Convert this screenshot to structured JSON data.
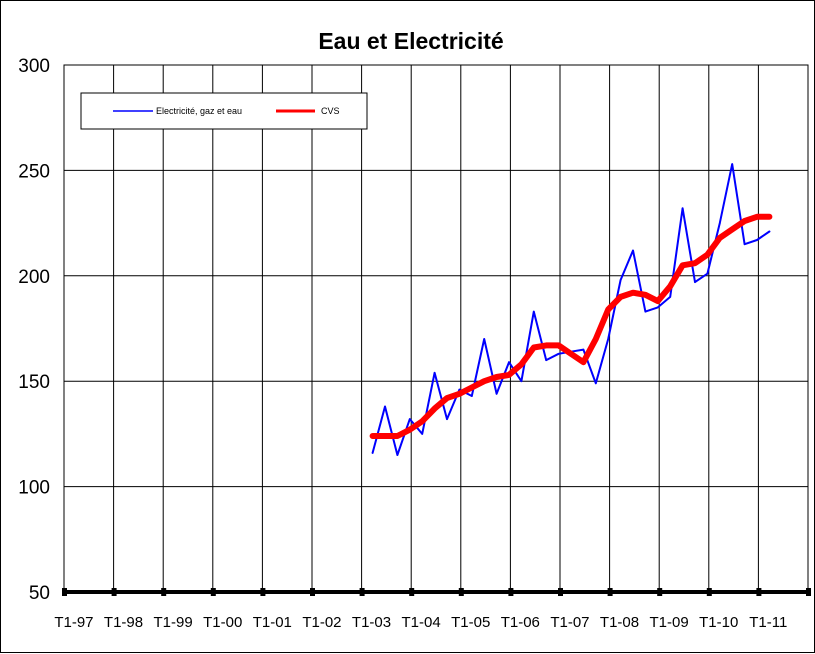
{
  "chart_data": {
    "type": "line",
    "title": "Eau et Electricité",
    "xlabel": "",
    "ylabel": "",
    "ylim": [
      50,
      300
    ],
    "yticks": [
      50,
      100,
      150,
      200,
      250,
      300
    ],
    "x_tick_labels": [
      "T1-97",
      "T1-98",
      "T1-99",
      "T1-00",
      "T1-01",
      "T1-02",
      "T1-03",
      "T1-04",
      "T1-05",
      "T1-06",
      "T1-07",
      "T1-08",
      "T1-09",
      "T1-10",
      "T1-11"
    ],
    "grid": true,
    "legend_position": "top-left",
    "x": [
      "T1-03",
      "T2-03",
      "T3-03",
      "T4-03",
      "T1-04",
      "T2-04",
      "T3-04",
      "T4-04",
      "T1-05",
      "T2-05",
      "T3-05",
      "T4-05",
      "T1-06",
      "T2-06",
      "T3-06",
      "T4-06",
      "T1-07",
      "T2-07",
      "T3-07",
      "T4-07",
      "T1-08",
      "T2-08",
      "T3-08",
      "T4-08",
      "T1-09",
      "T2-09",
      "T3-09",
      "T4-09",
      "T1-10",
      "T2-10",
      "T3-10",
      "T4-10",
      "T1-11"
    ],
    "series": [
      {
        "name": "Electricité, gaz et eau",
        "color": "#0000ff",
        "values": [
          116,
          138,
          115,
          132,
          125,
          154,
          132,
          146,
          143,
          170,
          144,
          159,
          150,
          183,
          160,
          163,
          164,
          165,
          149,
          170,
          198,
          212,
          183,
          185,
          190,
          232,
          197,
          201,
          225,
          253,
          215,
          217,
          221
        ]
      },
      {
        "name": "CVS",
        "color": "#ff0000",
        "values": [
          124,
          124,
          124,
          127,
          131,
          137,
          142,
          144,
          147,
          150,
          152,
          153,
          158,
          166,
          167,
          167,
          163,
          159,
          170,
          184,
          190,
          192,
          191,
          188,
          195,
          205,
          206,
          210,
          218,
          222,
          226,
          228,
          228
        ]
      }
    ]
  }
}
